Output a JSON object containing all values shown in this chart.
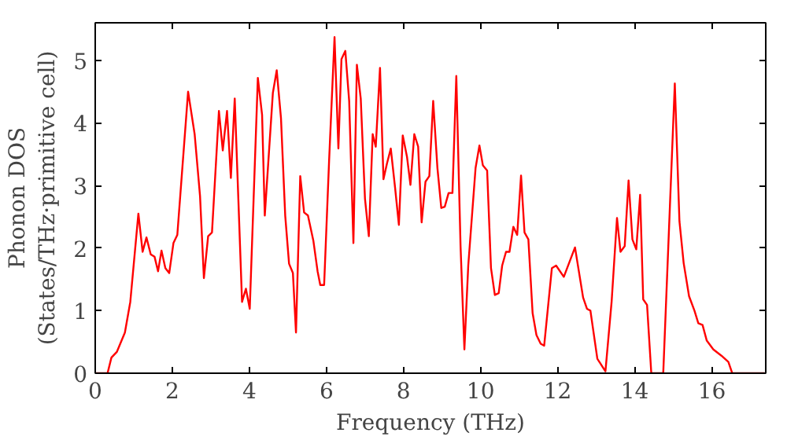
{
  "chart_data": {
    "type": "line",
    "xlabel": "Frequency (THz)",
    "ylabel": "Phonon DOS\n(States/THz·primitive cell)",
    "x": [
      0,
      0.32,
      0.42,
      0.56,
      0.77,
      0.91,
      1.12,
      1.23,
      1.33,
      1.44,
      1.54,
      1.63,
      1.72,
      1.82,
      1.92,
      2.03,
      2.13,
      2.41,
      2.58,
      2.72,
      2.82,
      2.93,
      3.03,
      3.21,
      3.31,
      3.42,
      3.52,
      3.62,
      3.81,
      3.91,
      4.01,
      4.22,
      4.33,
      4.4,
      4.61,
      4.71,
      4.82,
      4.93,
      5.03,
      5.13,
      5.21,
      5.32,
      5.42,
      5.52,
      5.66,
      5.77,
      5.84,
      5.94,
      6.07,
      6.21,
      6.31,
      6.39,
      6.49,
      6.59,
      6.7,
      6.79,
      6.89,
      7.0,
      7.1,
      7.2,
      7.28,
      7.39,
      7.48,
      7.57,
      7.67,
      7.78,
      7.88,
      7.98,
      8.09,
      8.18,
      8.28,
      8.38,
      8.47,
      8.57,
      8.67,
      8.77,
      8.88,
      8.98,
      9.07,
      9.17,
      9.27,
      9.37,
      9.48,
      9.58,
      9.68,
      9.87,
      9.97,
      10.06,
      10.17,
      10.27,
      10.37,
      10.47,
      10.56,
      10.66,
      10.75,
      10.85,
      10.95,
      11.05,
      11.14,
      11.24,
      11.35,
      11.45,
      11.56,
      11.65,
      11.85,
      11.96,
      12.16,
      12.45,
      12.66,
      12.76,
      12.85,
      13.03,
      13.24,
      13.4,
      13.54,
      13.63,
      13.74,
      13.84,
      13.94,
      14.04,
      14.14,
      14.22,
      14.32,
      14.43,
      14.74,
      15.04,
      15.16,
      15.27,
      15.41,
      15.55,
      15.65,
      15.76,
      15.87,
      16.04,
      16.25,
      16.43,
      16.53,
      17.37
    ],
    "series": [
      {
        "color": "#ff0000",
        "values": [
          0,
          0,
          0.25,
          0.34,
          0.65,
          1.14,
          2.55,
          1.94,
          2.17,
          1.9,
          1.86,
          1.63,
          1.96,
          1.68,
          1.6,
          2.08,
          2.21,
          4.5,
          3.82,
          2.83,
          1.52,
          2.19,
          2.25,
          4.19,
          3.56,
          4.19,
          3.12,
          4.39,
          1.14,
          1.35,
          1.03,
          4.72,
          4.13,
          2.52,
          4.48,
          4.84,
          4.08,
          2.52,
          1.75,
          1.6,
          0.65,
          3.15,
          2.57,
          2.52,
          2.12,
          1.63,
          1.41,
          1.41,
          3.41,
          5.37,
          3.59,
          5.02,
          5.15,
          4.35,
          2.08,
          4.93,
          4.39,
          2.79,
          2.19,
          3.82,
          3.62,
          4.88,
          3.1,
          3.35,
          3.59,
          2.97,
          2.37,
          3.8,
          3.46,
          3.01,
          3.82,
          3.62,
          2.41,
          3.06,
          3.15,
          4.35,
          3.28,
          2.64,
          2.66,
          2.88,
          2.88,
          4.75,
          2.03,
          0.38,
          1.72,
          3.28,
          3.64,
          3.32,
          3.24,
          1.68,
          1.25,
          1.28,
          1.72,
          1.94,
          1.94,
          2.34,
          2.21,
          3.16,
          2.25,
          2.14,
          0.96,
          0.61,
          0.47,
          0.44,
          1.68,
          1.72,
          1.54,
          2.01,
          1.21,
          1.03,
          1.0,
          0.23,
          0.03,
          1.14,
          2.48,
          1.94,
          2.03,
          3.08,
          2.14,
          1.98,
          2.85,
          1.18,
          1.09,
          0,
          0,
          4.63,
          2.43,
          1.76,
          1.23,
          1.0,
          0.8,
          0.77,
          0.52,
          0.38,
          0.28,
          0.18,
          0,
          0
        ]
      }
    ],
    "xlim": [
      0,
      17.4
    ],
    "ylim": [
      0,
      5.6
    ],
    "xticks": [
      0,
      2,
      4,
      6,
      8,
      10,
      12,
      14,
      16
    ],
    "yticks": [
      0,
      1,
      2,
      3,
      4,
      5
    ],
    "grid": false,
    "marker": "none",
    "line_style": "solid"
  }
}
